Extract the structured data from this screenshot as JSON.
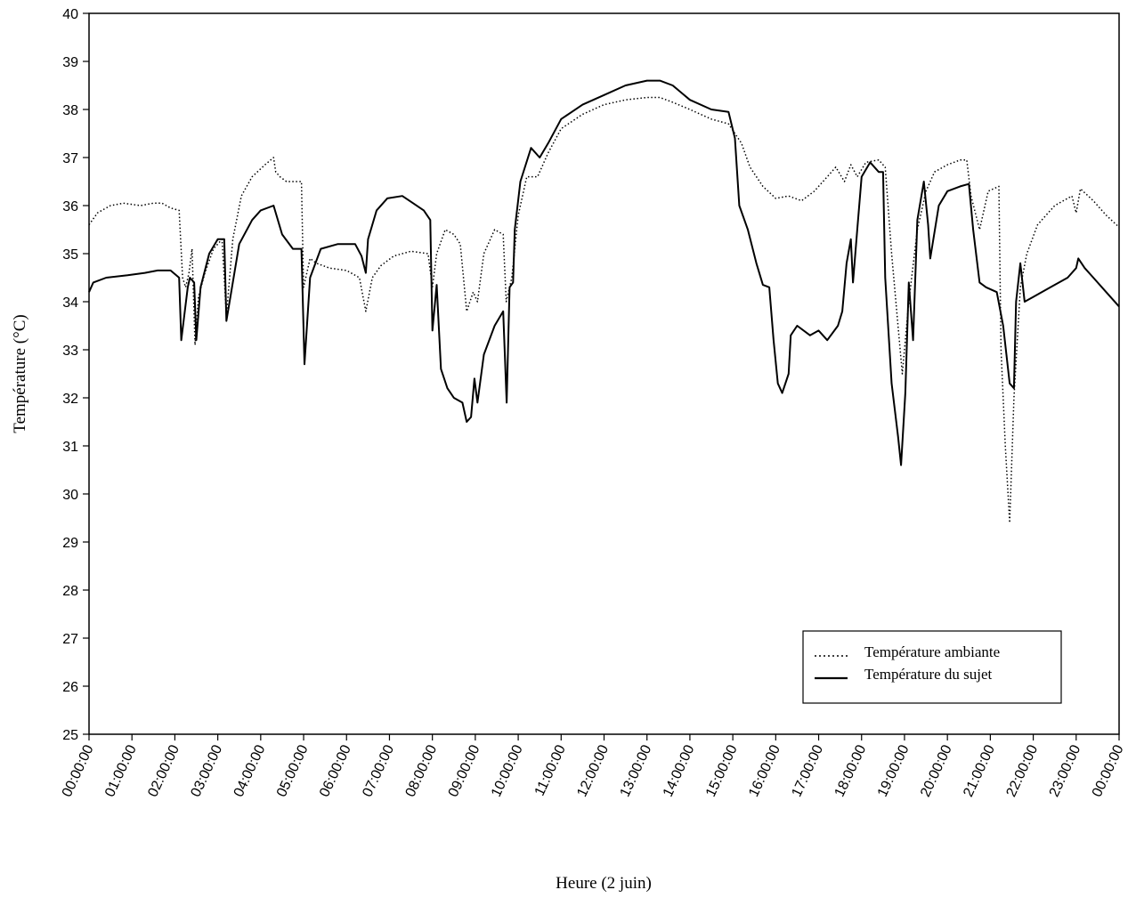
{
  "chart_data": {
    "type": "line",
    "title": "",
    "xlabel": "Heure (2 juin)",
    "ylabel": "Température (°C)",
    "ylim": [
      25,
      40
    ],
    "xlim_hours": [
      0,
      24
    ],
    "y_ticks": [
      "25",
      "26",
      "27",
      "28",
      "29",
      "30",
      "31",
      "32",
      "33",
      "34",
      "35",
      "36",
      "37",
      "38",
      "39",
      "40"
    ],
    "x_ticks": [
      "00:00:00",
      "01:00:00",
      "02:00:00",
      "03:00:00",
      "04:00:00",
      "05:00:00",
      "06:00:00",
      "07:00:00",
      "08:00:00",
      "09:00:00",
      "10:00:00",
      "11:00:00",
      "12:00:00",
      "13:00:00",
      "14:00:00",
      "15:00:00",
      "16:00:00",
      "17:00:00",
      "18:00:00",
      "19:00:00",
      "20:00:00",
      "21:00:00",
      "22:00:00",
      "23:00:00",
      "00:00:00"
    ],
    "grid": false,
    "legend_position": "bottom-right",
    "series": [
      {
        "name": "Température ambiante",
        "style": "dotted",
        "color": "#000000",
        "points": [
          [
            0.0,
            35.6
          ],
          [
            0.2,
            35.85
          ],
          [
            0.5,
            36.0
          ],
          [
            0.8,
            36.05
          ],
          [
            1.2,
            36.0
          ],
          [
            1.5,
            36.05
          ],
          [
            1.7,
            36.05
          ],
          [
            1.9,
            35.95
          ],
          [
            2.1,
            35.9
          ],
          [
            2.18,
            34.5
          ],
          [
            2.25,
            34.3
          ],
          [
            2.33,
            34.6
          ],
          [
            2.4,
            35.1
          ],
          [
            2.47,
            33.1
          ],
          [
            2.55,
            34.1
          ],
          [
            2.7,
            34.6
          ],
          [
            2.9,
            35.1
          ],
          [
            3.1,
            35.3
          ],
          [
            3.2,
            33.7
          ],
          [
            3.35,
            35.3
          ],
          [
            3.55,
            36.2
          ],
          [
            3.8,
            36.6
          ],
          [
            4.1,
            36.85
          ],
          [
            4.3,
            37.0
          ],
          [
            4.35,
            36.7
          ],
          [
            4.45,
            36.6
          ],
          [
            4.6,
            36.5
          ],
          [
            4.95,
            36.5
          ],
          [
            5.0,
            34.3
          ],
          [
            5.15,
            34.9
          ],
          [
            5.3,
            34.8
          ],
          [
            5.6,
            34.7
          ],
          [
            6.0,
            34.65
          ],
          [
            6.3,
            34.5
          ],
          [
            6.45,
            33.8
          ],
          [
            6.6,
            34.5
          ],
          [
            6.8,
            34.75
          ],
          [
            7.1,
            34.95
          ],
          [
            7.5,
            35.05
          ],
          [
            7.9,
            35.0
          ],
          [
            8.0,
            34.3
          ],
          [
            8.1,
            35.0
          ],
          [
            8.3,
            35.5
          ],
          [
            8.5,
            35.4
          ],
          [
            8.65,
            35.2
          ],
          [
            8.8,
            33.8
          ],
          [
            8.95,
            34.2
          ],
          [
            9.05,
            34.0
          ],
          [
            9.2,
            35.0
          ],
          [
            9.45,
            35.5
          ],
          [
            9.65,
            35.4
          ],
          [
            9.72,
            34.0
          ],
          [
            9.85,
            34.5
          ],
          [
            10.0,
            35.8
          ],
          [
            10.2,
            36.6
          ],
          [
            10.45,
            36.6
          ],
          [
            10.7,
            37.1
          ],
          [
            11.0,
            37.6
          ],
          [
            11.5,
            37.9
          ],
          [
            12.0,
            38.1
          ],
          [
            12.5,
            38.2
          ],
          [
            13.0,
            38.25
          ],
          [
            13.3,
            38.25
          ],
          [
            13.6,
            38.15
          ],
          [
            14.0,
            38.0
          ],
          [
            14.5,
            37.8
          ],
          [
            14.9,
            37.7
          ],
          [
            15.05,
            37.5
          ],
          [
            15.2,
            37.3
          ],
          [
            15.4,
            36.8
          ],
          [
            15.7,
            36.4
          ],
          [
            16.0,
            36.15
          ],
          [
            16.3,
            36.2
          ],
          [
            16.6,
            36.1
          ],
          [
            16.9,
            36.3
          ],
          [
            17.2,
            36.6
          ],
          [
            17.4,
            36.8
          ],
          [
            17.6,
            36.5
          ],
          [
            17.75,
            36.85
          ],
          [
            17.9,
            36.6
          ],
          [
            18.1,
            36.9
          ],
          [
            18.4,
            36.95
          ],
          [
            18.55,
            36.8
          ],
          [
            18.7,
            35.0
          ],
          [
            18.85,
            33.5
          ],
          [
            18.95,
            32.5
          ],
          [
            19.1,
            34.0
          ],
          [
            19.3,
            35.5
          ],
          [
            19.5,
            36.3
          ],
          [
            19.7,
            36.7
          ],
          [
            20.0,
            36.85
          ],
          [
            20.3,
            36.95
          ],
          [
            20.45,
            36.95
          ],
          [
            20.55,
            36.2
          ],
          [
            20.75,
            35.5
          ],
          [
            20.95,
            36.3
          ],
          [
            21.2,
            36.4
          ],
          [
            21.25,
            33.0
          ],
          [
            21.35,
            31.0
          ],
          [
            21.45,
            29.4
          ],
          [
            21.55,
            32.0
          ],
          [
            21.7,
            34.3
          ],
          [
            21.85,
            35.0
          ],
          [
            22.1,
            35.6
          ],
          [
            22.5,
            36.0
          ],
          [
            22.9,
            36.2
          ],
          [
            23.0,
            35.85
          ],
          [
            23.1,
            36.35
          ],
          [
            23.4,
            36.1
          ],
          [
            23.7,
            35.8
          ],
          [
            24.0,
            35.55
          ]
        ]
      },
      {
        "name": "Température du sujet",
        "style": "solid",
        "color": "#000000",
        "points": [
          [
            0.0,
            34.2
          ],
          [
            0.1,
            34.4
          ],
          [
            0.4,
            34.5
          ],
          [
            0.9,
            34.55
          ],
          [
            1.3,
            34.6
          ],
          [
            1.6,
            34.65
          ],
          [
            1.9,
            34.65
          ],
          [
            2.1,
            34.5
          ],
          [
            2.15,
            33.2
          ],
          [
            2.3,
            34.3
          ],
          [
            2.35,
            34.5
          ],
          [
            2.45,
            34.4
          ],
          [
            2.5,
            33.2
          ],
          [
            2.6,
            34.3
          ],
          [
            2.8,
            35.0
          ],
          [
            3.0,
            35.3
          ],
          [
            3.15,
            35.3
          ],
          [
            3.2,
            33.6
          ],
          [
            3.35,
            34.4
          ],
          [
            3.5,
            35.2
          ],
          [
            3.8,
            35.7
          ],
          [
            4.0,
            35.9
          ],
          [
            4.3,
            36.0
          ],
          [
            4.5,
            35.4
          ],
          [
            4.75,
            35.1
          ],
          [
            4.95,
            35.1
          ],
          [
            5.02,
            32.7
          ],
          [
            5.15,
            34.5
          ],
          [
            5.4,
            35.1
          ],
          [
            5.8,
            35.2
          ],
          [
            6.2,
            35.2
          ],
          [
            6.35,
            34.95
          ],
          [
            6.45,
            34.6
          ],
          [
            6.5,
            35.3
          ],
          [
            6.7,
            35.9
          ],
          [
            6.95,
            36.15
          ],
          [
            7.3,
            36.2
          ],
          [
            7.55,
            36.05
          ],
          [
            7.8,
            35.9
          ],
          [
            7.95,
            35.7
          ],
          [
            8.0,
            33.4
          ],
          [
            8.1,
            34.35
          ],
          [
            8.2,
            32.6
          ],
          [
            8.35,
            32.2
          ],
          [
            8.5,
            32.0
          ],
          [
            8.7,
            31.9
          ],
          [
            8.8,
            31.5
          ],
          [
            8.9,
            31.6
          ],
          [
            8.98,
            32.4
          ],
          [
            9.05,
            31.9
          ],
          [
            9.2,
            32.9
          ],
          [
            9.45,
            33.5
          ],
          [
            9.65,
            33.8
          ],
          [
            9.73,
            31.9
          ],
          [
            9.8,
            34.3
          ],
          [
            9.88,
            34.4
          ],
          [
            9.92,
            35.5
          ],
          [
            10.05,
            36.5
          ],
          [
            10.3,
            37.2
          ],
          [
            10.5,
            37.0
          ],
          [
            10.7,
            37.3
          ],
          [
            11.0,
            37.8
          ],
          [
            11.5,
            38.1
          ],
          [
            12.0,
            38.3
          ],
          [
            12.5,
            38.5
          ],
          [
            13.0,
            38.6
          ],
          [
            13.3,
            38.6
          ],
          [
            13.6,
            38.5
          ],
          [
            14.0,
            38.2
          ],
          [
            14.5,
            38.0
          ],
          [
            14.9,
            37.95
          ],
          [
            15.05,
            37.4
          ],
          [
            15.15,
            36.0
          ],
          [
            15.35,
            35.5
          ],
          [
            15.55,
            34.8
          ],
          [
            15.7,
            34.35
          ],
          [
            15.85,
            34.3
          ],
          [
            15.95,
            33.2
          ],
          [
            16.05,
            32.3
          ],
          [
            16.15,
            32.1
          ],
          [
            16.3,
            32.5
          ],
          [
            16.35,
            33.3
          ],
          [
            16.5,
            33.5
          ],
          [
            16.8,
            33.3
          ],
          [
            17.0,
            33.4
          ],
          [
            17.2,
            33.2
          ],
          [
            17.45,
            33.5
          ],
          [
            17.55,
            33.8
          ],
          [
            17.65,
            34.8
          ],
          [
            17.75,
            35.3
          ],
          [
            17.8,
            34.4
          ],
          [
            17.9,
            35.5
          ],
          [
            18.0,
            36.6
          ],
          [
            18.2,
            36.9
          ],
          [
            18.4,
            36.7
          ],
          [
            18.5,
            36.7
          ],
          [
            18.55,
            34.5
          ],
          [
            18.7,
            32.3
          ],
          [
            18.85,
            31.2
          ],
          [
            18.92,
            30.6
          ],
          [
            19.02,
            32.1
          ],
          [
            19.1,
            34.4
          ],
          [
            19.2,
            33.2
          ],
          [
            19.3,
            35.7
          ],
          [
            19.45,
            36.5
          ],
          [
            19.55,
            35.6
          ],
          [
            19.6,
            34.9
          ],
          [
            19.8,
            36.0
          ],
          [
            20.0,
            36.3
          ],
          [
            20.3,
            36.4
          ],
          [
            20.5,
            36.45
          ],
          [
            20.6,
            35.5
          ],
          [
            20.75,
            34.4
          ],
          [
            20.9,
            34.3
          ],
          [
            21.15,
            34.2
          ],
          [
            21.3,
            33.5
          ],
          [
            21.45,
            32.3
          ],
          [
            21.55,
            32.2
          ],
          [
            21.6,
            34.0
          ],
          [
            21.7,
            34.8
          ],
          [
            21.8,
            34.0
          ],
          [
            22.0,
            34.1
          ],
          [
            22.4,
            34.3
          ],
          [
            22.8,
            34.5
          ],
          [
            23.0,
            34.7
          ],
          [
            23.05,
            34.9
          ],
          [
            23.2,
            34.7
          ],
          [
            23.4,
            34.5
          ],
          [
            23.7,
            34.2
          ],
          [
            24.0,
            33.9
          ]
        ]
      }
    ]
  }
}
